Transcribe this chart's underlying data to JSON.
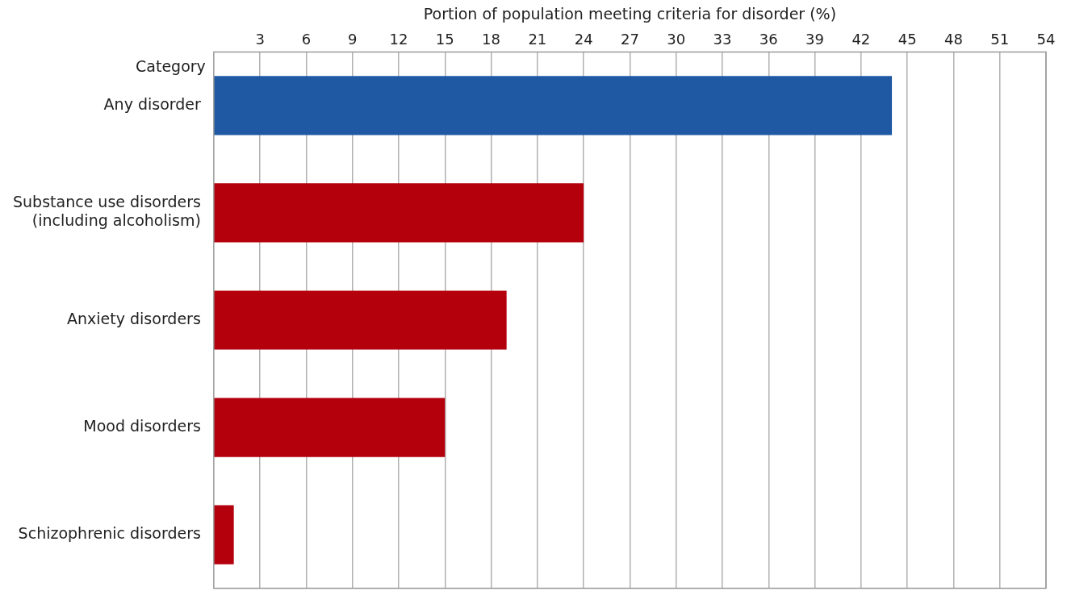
{
  "chart_data": {
    "type": "bar",
    "orientation": "horizontal",
    "xlabel": "Portion of population meeting criteria for disorder (%)",
    "annotations": [
      "Category"
    ],
    "categories": [
      "Any disorder",
      "Substance use disorders (including alcoholism)",
      "Anxiety disorders",
      "Mood disorders",
      "Schizophrenic disorders"
    ],
    "values": [
      44,
      24,
      19,
      15,
      1.3
    ],
    "colors": [
      "#1f58a3",
      "#b3000c",
      "#b3000c",
      "#b3000c",
      "#b3000c"
    ],
    "xlim": [
      0,
      54
    ],
    "xticks": [
      3,
      6,
      9,
      12,
      15,
      18,
      21,
      24,
      27,
      30,
      33,
      36,
      39,
      42,
      45,
      48,
      51,
      54
    ],
    "grid": "x",
    "legend": false
  }
}
